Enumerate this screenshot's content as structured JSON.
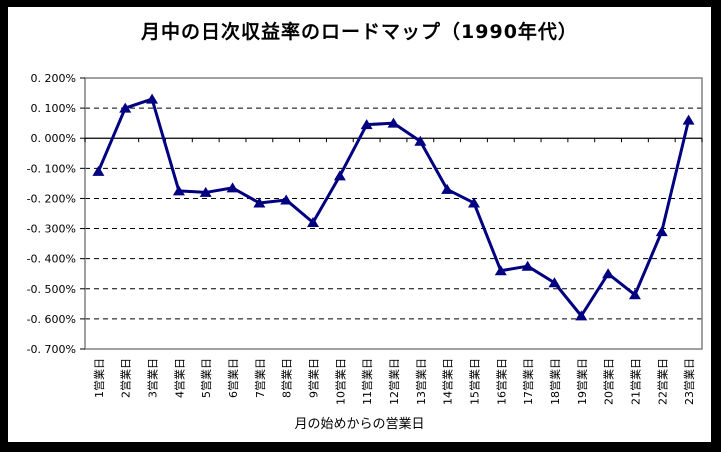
{
  "window": {
    "background": "#ffffff",
    "frame_border_color": "#000000"
  },
  "chart_data": {
    "type": "line",
    "title": "月中の日次収益率のロードマップ（1990年代）",
    "xlabel": "月の始めからの営業日",
    "ylabel": "",
    "unit": "%",
    "categories": [
      "1営業日",
      "2営業日",
      "3営業日",
      "4営業日",
      "5営業日",
      "6営業日",
      "7営業日",
      "8営業日",
      "9営業日",
      "10営業日",
      "11営業日",
      "12営業日",
      "13営業日",
      "14営業日",
      "15営業日",
      "16営業日",
      "17営業日",
      "18営業日",
      "19営業日",
      "20営業日",
      "21営業日",
      "22営業日",
      "23営業日"
    ],
    "values": [
      -0.11,
      0.1,
      0.13,
      -0.175,
      -0.18,
      -0.165,
      -0.215,
      -0.205,
      -0.28,
      -0.125,
      0.045,
      0.05,
      -0.01,
      -0.17,
      -0.215,
      -0.44,
      -0.425,
      -0.48,
      -0.59,
      -0.45,
      -0.52,
      -0.31,
      0.06
    ],
    "ylim": [
      -0.7,
      0.2
    ],
    "ytick_step": 0.1,
    "ytick_labels": [
      "0. 200%",
      "0. 100%",
      "0. 000%",
      "-0. 100%",
      "-0. 200%",
      "-0. 300%",
      "-0. 400%",
      "-0. 500%",
      "-0. 600%",
      "-0. 700%"
    ],
    "grid": "horizontal-dashed",
    "legend": "none",
    "zero_line": true,
    "series_color": "#000080",
    "marker": "triangle-up",
    "plot_border_color": "#808080",
    "gridline_color": "#000000"
  }
}
